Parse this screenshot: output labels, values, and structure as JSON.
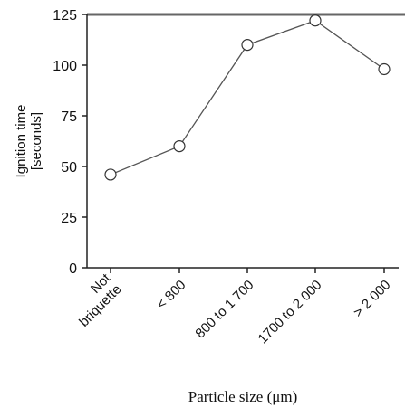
{
  "chart_data": {
    "type": "line",
    "ylabel_lines": [
      "Ignition time",
      "[seconds]"
    ],
    "xlabel": "Particle size (μm)",
    "ylim": [
      0,
      125
    ],
    "yticks": [
      "0",
      "25",
      "50",
      "75",
      "100",
      "125"
    ],
    "categories": [
      [
        "Not",
        "briquette"
      ],
      [
        "< 800"
      ],
      [
        "800 to 1 700"
      ],
      [
        "1700 to 2 000"
      ],
      [
        "> 2 000"
      ]
    ],
    "values": [
      46,
      60,
      110,
      122,
      98
    ],
    "grid": false,
    "marker": "open-circle",
    "colors": {
      "line": "#555555",
      "axis": "#222222",
      "top_border": "#666666"
    }
  }
}
